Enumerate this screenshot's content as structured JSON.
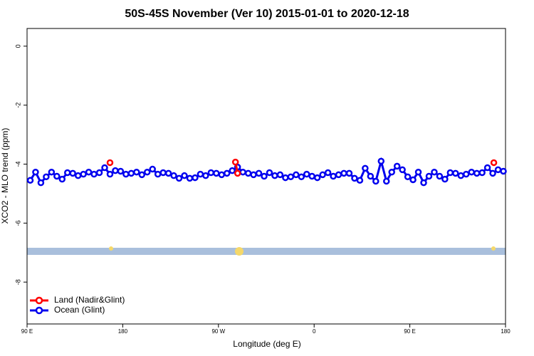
{
  "chart_data": {
    "type": "line",
    "title": "50S-45S November (Ver 10)   2015-01-01 to 2020-12-18",
    "xlabel": "Longitude (deg E)",
    "ylabel": "XCO2 - MLO trend (ppm)",
    "xlim": [
      90,
      540
    ],
    "xticks": [
      {
        "value": 90,
        "label": "90 E"
      },
      180,
      {
        "value": 270,
        "label": "90 W"
      },
      {
        "value": 360,
        "label": "0"
      },
      {
        "value": 450,
        "label": "90 E"
      },
      {
        "value": 540,
        "label": "180"
      }
    ],
    "ylim": [
      -9.42,
      0.6
    ],
    "yticks": [
      0,
      -2,
      -4,
      -6,
      -8
    ],
    "legend": "bottom-left",
    "series": [
      {
        "name": "Land (Nadir&Glint)",
        "color": "#ff0000",
        "x": [
          168,
          286,
          288,
          529
        ],
        "values": [
          -3.95,
          -3.93,
          -4.31,
          -3.95
        ]
      },
      {
        "name": "Ocean (Glint)",
        "color": "#0000ee",
        "x": [
          93,
          98,
          103,
          108,
          113,
          118,
          123,
          128,
          133,
          138,
          143,
          148,
          153,
          158,
          163,
          168,
          173,
          178,
          183,
          188,
          193,
          198,
          203,
          208,
          213,
          218,
          223,
          228,
          233,
          238,
          243,
          248,
          253,
          258,
          263,
          268,
          273,
          278,
          283,
          288,
          293,
          298,
          303,
          308,
          313,
          318,
          323,
          328,
          333,
          338,
          343,
          348,
          353,
          358,
          363,
          368,
          373,
          378,
          383,
          388,
          393,
          398,
          403,
          408,
          413,
          418,
          423,
          428,
          433,
          438,
          443,
          448,
          453,
          458,
          463,
          468,
          473,
          478,
          483,
          488,
          493,
          498,
          503,
          508,
          513,
          518,
          523,
          528,
          533,
          538
        ],
        "values": [
          -4.55,
          -4.27,
          -4.63,
          -4.43,
          -4.27,
          -4.41,
          -4.51,
          -4.29,
          -4.31,
          -4.39,
          -4.34,
          -4.27,
          -4.34,
          -4.29,
          -4.12,
          -4.34,
          -4.22,
          -4.24,
          -4.34,
          -4.31,
          -4.27,
          -4.36,
          -4.27,
          -4.17,
          -4.34,
          -4.29,
          -4.31,
          -4.39,
          -4.48,
          -4.39,
          -4.48,
          -4.46,
          -4.34,
          -4.39,
          -4.29,
          -4.31,
          -4.36,
          -4.31,
          -4.22,
          -4.1,
          -4.27,
          -4.31,
          -4.36,
          -4.31,
          -4.41,
          -4.29,
          -4.39,
          -4.36,
          -4.46,
          -4.43,
          -4.36,
          -4.43,
          -4.34,
          -4.41,
          -4.46,
          -4.36,
          -4.29,
          -4.41,
          -4.36,
          -4.31,
          -4.31,
          -4.48,
          -4.55,
          -4.14,
          -4.41,
          -4.58,
          -3.9,
          -4.58,
          -4.27,
          -4.07,
          -4.19,
          -4.43,
          -4.53,
          -4.27,
          -4.63,
          -4.41,
          -4.27,
          -4.41,
          -4.51,
          -4.29,
          -4.31,
          -4.39,
          -4.34,
          -4.27,
          -4.31,
          -4.29,
          -4.12,
          -4.31,
          -4.19,
          -4.24
        ]
      }
    ]
  }
}
